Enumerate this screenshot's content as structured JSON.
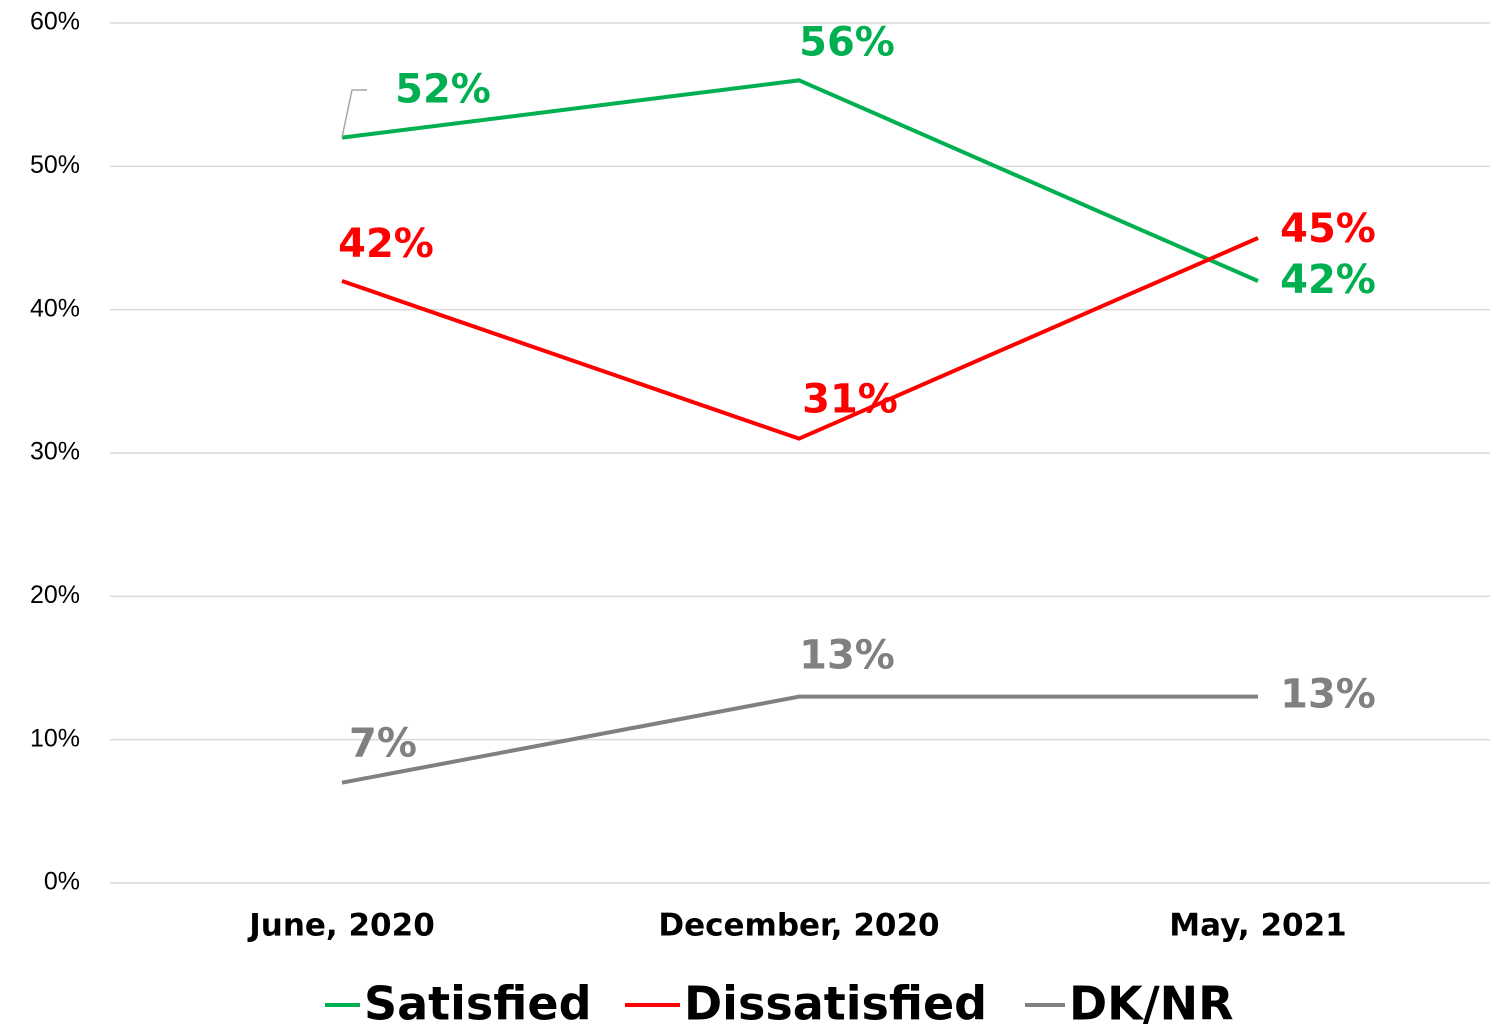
{
  "chart_data": {
    "type": "line",
    "categories": [
      "June, 2020",
      "December, 2020",
      "May, 2021"
    ],
    "series": [
      {
        "name": "Satisfied",
        "color": "#00b050",
        "values": [
          52,
          56,
          42
        ],
        "value_labels": [
          "52%",
          "56%",
          "42%"
        ]
      },
      {
        "name": "Dissatisfied",
        "color": "#ff0000",
        "values": [
          42,
          31,
          45
        ],
        "value_labels": [
          "42%",
          "31%",
          "45%"
        ]
      },
      {
        "name": "DK/NR",
        "color": "#808080",
        "values": [
          7,
          13,
          13
        ],
        "value_labels": [
          "7%",
          "13%",
          "13%"
        ]
      }
    ],
    "ylim": [
      0,
      60
    ],
    "yticks": [
      {
        "value": 0,
        "label": "0%"
      },
      {
        "value": 10,
        "label": "10%"
      },
      {
        "value": 20,
        "label": "20%"
      },
      {
        "value": 30,
        "label": "30%"
      },
      {
        "value": 40,
        "label": "40%"
      },
      {
        "value": 50,
        "label": "50%"
      },
      {
        "value": 60,
        "label": "60%"
      }
    ],
    "grid": true,
    "legend": "bottom"
  }
}
